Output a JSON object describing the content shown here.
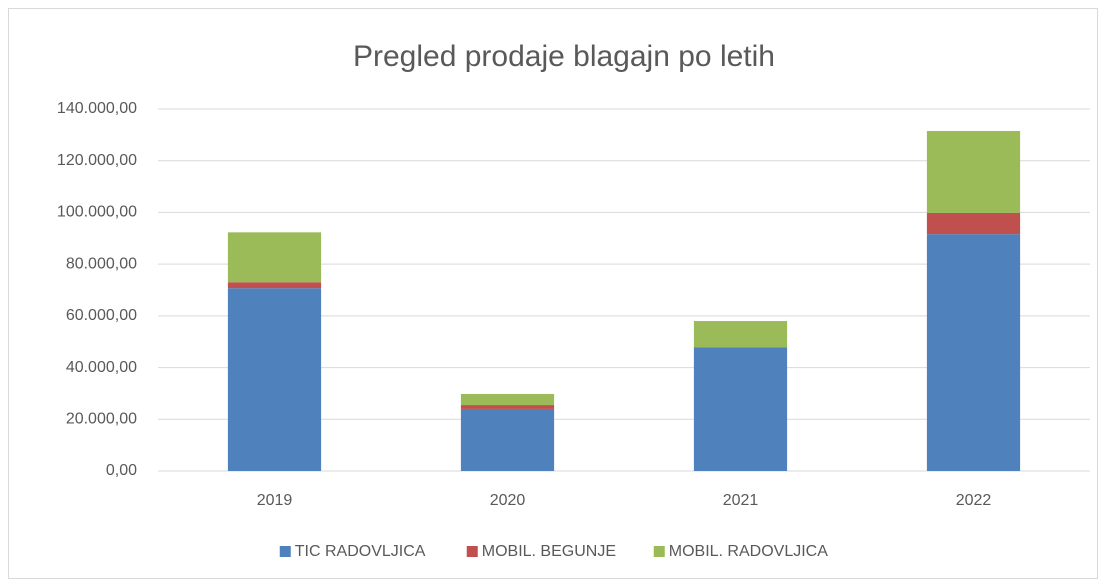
{
  "chart_data": {
    "type": "stacked_bar",
    "title": "Pregled prodaje blagajn po letih",
    "categories": [
      "2019",
      "2020",
      "2021",
      "2022"
    ],
    "series": [
      {
        "name": "TIC RADOVLJICA",
        "color": "#4f81bd",
        "values": [
          70700,
          24000,
          47600,
          91600
        ]
      },
      {
        "name": "MOBIL. BEGUNJE",
        "color": "#c0504d",
        "values": [
          2300,
          1500,
          300,
          8200
        ]
      },
      {
        "name": "MOBIL. RADOVLJICA",
        "color": "#9bbb59",
        "values": [
          19300,
          4300,
          10100,
          31700
        ]
      }
    ],
    "ylim": [
      0,
      140000
    ],
    "yticks": [
      {
        "value": 0,
        "label": "0,00"
      },
      {
        "value": 20000,
        "label": "20.000,00"
      },
      {
        "value": 40000,
        "label": "40.000,00"
      },
      {
        "value": 60000,
        "label": "60.000,00"
      },
      {
        "value": 80000,
        "label": "80.000,00"
      },
      {
        "value": 100000,
        "label": "100.000,00"
      },
      {
        "value": 120000,
        "label": "120.000,00"
      },
      {
        "value": 140000,
        "label": "140.000,00"
      }
    ],
    "grid": true,
    "legend": "bottom"
  }
}
